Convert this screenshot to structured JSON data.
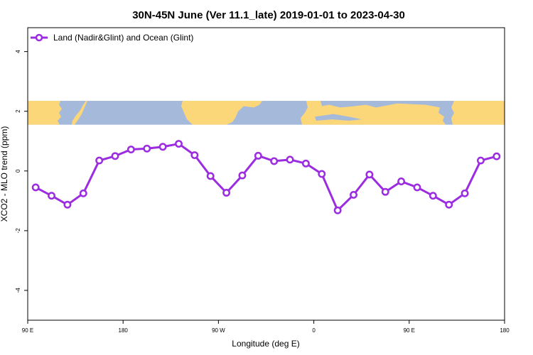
{
  "chart_data": {
    "type": "line",
    "title": "30N-45N June (Ver 11.1_late)   2019-01-01 to 2023-04-30",
    "xlabel": "Longitude (deg E)",
    "ylabel": "XCO2 - MLO trend (ppm)",
    "x_ticks": [
      {
        "value": 90,
        "label": "90 E"
      },
      {
        "value": 180,
        "label": "180"
      },
      {
        "value": 270,
        "label": "90 W"
      },
      {
        "value": 360,
        "label": "0"
      },
      {
        "value": 450,
        "label": "90 E"
      },
      {
        "value": 540,
        "label": "180"
      }
    ],
    "y_ticks": [
      {
        "value": 4,
        "label": "4"
      },
      {
        "value": 2,
        "label": "2"
      },
      {
        "value": 0,
        "label": "0"
      },
      {
        "value": -2,
        "label": "-2"
      },
      {
        "value": -4,
        "label": "-4"
      }
    ],
    "xlim": [
      90,
      540
    ],
    "ylim": [
      -5,
      4.8
    ],
    "legend_position": "top-left",
    "map_band": {
      "ymin": 1.55,
      "ymax": 2.35,
      "ocean_color": "#a5b9da",
      "land_color": "#fcd77a"
    },
    "series": [
      {
        "name": "Land (Nadir&Glint) and Ocean (Glint)",
        "color": "#9b2ce0",
        "x": [
          97.5,
          112.5,
          127.5,
          142.5,
          157.5,
          172.5,
          187.5,
          202.5,
          217.5,
          232.5,
          247.5,
          262.5,
          277.5,
          292.5,
          307.5,
          322.5,
          337.5,
          352.5,
          367.5,
          382.5,
          397.5,
          412.5,
          427.5,
          442.5,
          457.5,
          472.5,
          487.5,
          502.5,
          517.5,
          532.5
        ],
        "values": [
          -0.55,
          -0.83,
          -1.13,
          -0.75,
          0.35,
          0.5,
          0.72,
          0.75,
          0.81,
          0.91,
          0.53,
          -0.17,
          -0.73,
          -0.15,
          0.51,
          0.33,
          0.38,
          0.25,
          -0.1,
          -1.32,
          -0.8,
          -0.12,
          -0.7,
          -0.35,
          -0.55,
          -0.83,
          -1.13,
          -0.75,
          0.35,
          0.49
        ]
      }
    ]
  }
}
